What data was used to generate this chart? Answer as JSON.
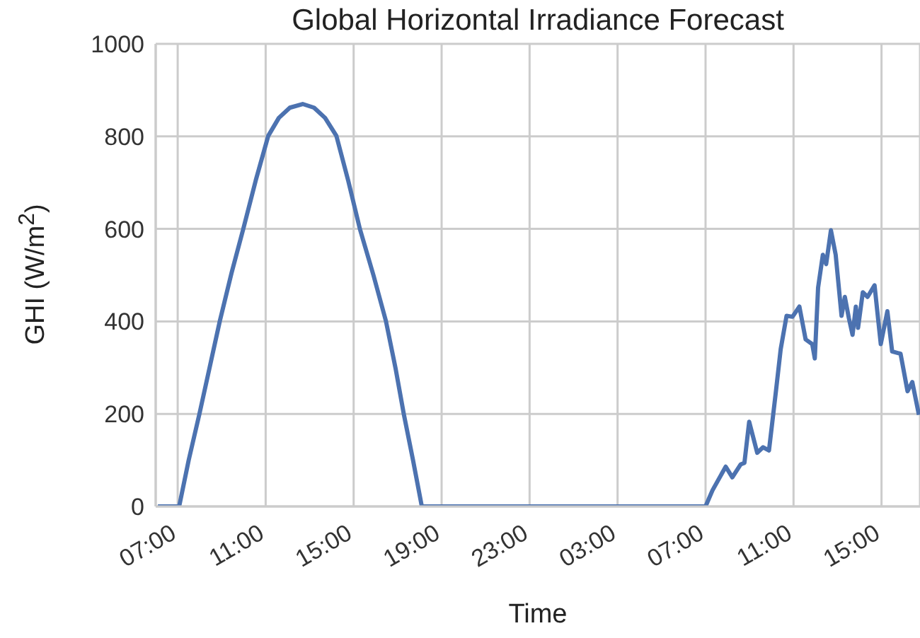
{
  "chart_data": {
    "type": "line",
    "title": "Global Horizontal Irradiance Forecast",
    "xlabel": "Time",
    "ylabel": "GHI (W/m$^{2}$)",
    "series": [
      {
        "color": "#4c72b0",
        "x": [
          "--01-01T06:06",
          "--01-01T07:04",
          "--01-01T07:30",
          "--01-01T07:59",
          "--01-01T08:27",
          "--01-01T08:55",
          "--01-01T09:27",
          "--01-01T09:59",
          "--01-01T10:33",
          "--01-01T11:07",
          "--01-01T11:36",
          "--01-01T12:06",
          "--01-01T12:41",
          "--01-01T13:12",
          "--01-01T13:42",
          "--01-01T14:13",
          "--01-01T14:45",
          "--01-01T15:17",
          "--01-01T15:54",
          "--01-01T16:28",
          "--01-01T16:54",
          "--01-01T17:17",
          "--01-01T17:42",
          "--01-01T18:06",
          "--01-02T07:00",
          "--01-02T07:19",
          "--01-02T07:55",
          "--01-02T08:13",
          "--01-02T08:36",
          "--01-02T08:46",
          "--01-02T08:59",
          "--01-02T09:21",
          "--01-02T09:37",
          "--01-02T09:53",
          "--01-02T10:12",
          "--01-02T10:25",
          "--01-02T10:41",
          "--01-02T10:57",
          "--01-02T11:16",
          "--01-02T11:33",
          "--01-02T11:51",
          "--01-02T11:58",
          "--01-02T12:07",
          "--01-02T12:20",
          "--01-02T12:29",
          "--01-02T12:42",
          "--01-02T12:55",
          "--01-02T13:11",
          "--01-02T13:20",
          "--01-02T13:31",
          "--01-02T13:41",
          "--01-02T13:50",
          "--01-02T13:56",
          "--01-02T14:09",
          "--01-02T14:22",
          "--01-02T14:41",
          "--01-02T14:58",
          "--01-02T15:16",
          "--01-02T15:29",
          "--01-02T15:52",
          "--01-02T16:11",
          "--01-02T16:24",
          "--01-02T16:42"
        ],
        "values": [
          0,
          0,
          100,
          199,
          300,
          401,
          505,
          600,
          705,
          801,
          840,
          862,
          870,
          862,
          840,
          801,
          705,
          600,
          500,
          401,
          300,
          199,
          100,
          0,
          0,
          35,
          86,
          63,
          91,
          94,
          183,
          116,
          128,
          121,
          249,
          340,
          412,
          410,
          432,
          361,
          351,
          320,
          473,
          544,
          524,
          597,
          544,
          412,
          453,
          407,
          371,
          432,
          386,
          463,
          453,
          478,
          351,
          422,
          335,
          330,
          249,
          269,
          198
        ]
      }
    ],
    "xlim": [
      "--01-01T06:00",
      "--01-02T16:45"
    ],
    "xticks": [
      {
        "value": "--01-01T07:00",
        "label": "07:00"
      },
      {
        "value": "--01-01T11:00",
        "label": "11:00"
      },
      {
        "value": "--01-01T15:00",
        "label": "15:00"
      },
      {
        "value": "--01-01T19:00",
        "label": "19:00"
      },
      {
        "value": "--01-01T23:00",
        "label": "23:00"
      },
      {
        "value": "--01-02T03:00",
        "label": "03:00"
      },
      {
        "value": "--01-02T07:00",
        "label": "07:00"
      },
      {
        "value": "--01-02T11:00",
        "label": "11:00"
      },
      {
        "value": "--01-02T15:00",
        "label": "15:00"
      }
    ],
    "ylim": [
      0,
      1000
    ],
    "yticks": [
      0,
      200,
      400,
      600,
      800,
      1000
    ],
    "grid": true
  }
}
